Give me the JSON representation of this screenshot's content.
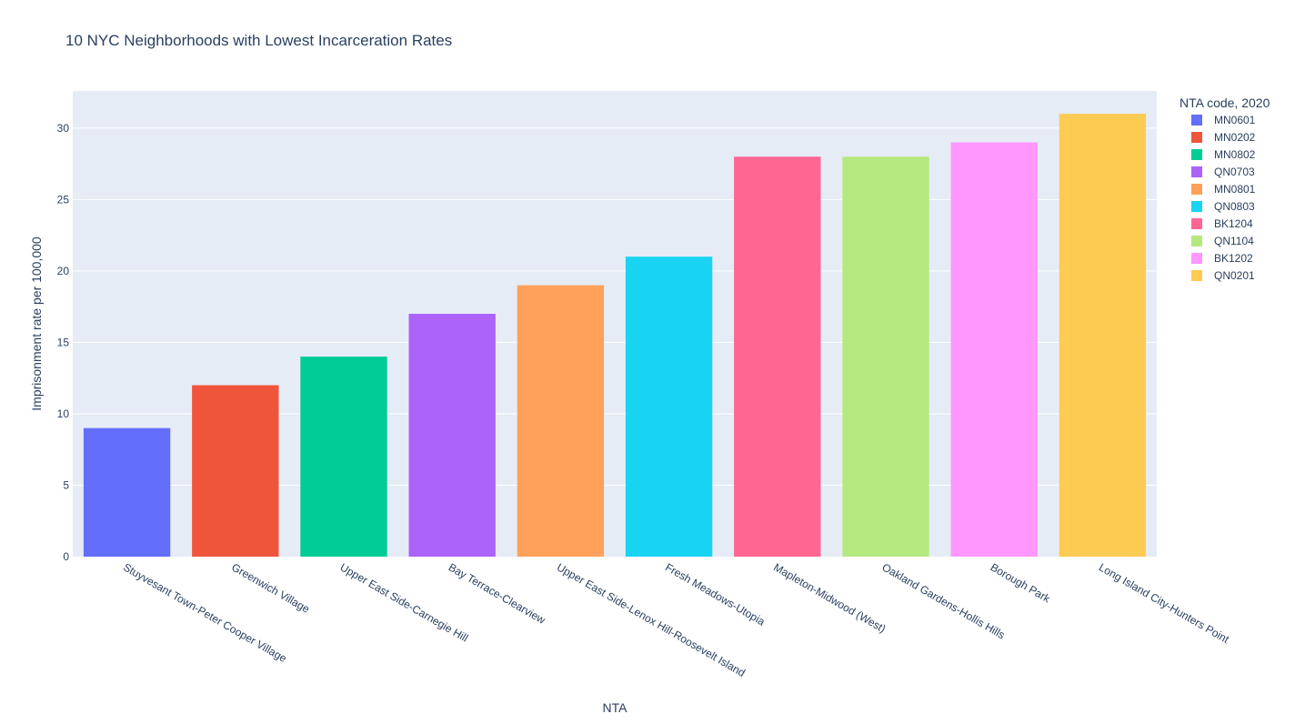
{
  "chart_data": {
    "type": "bar",
    "title": "10 NYC Neighborhoods with Lowest Incarceration Rates",
    "xlabel": "NTA",
    "ylabel": "Imprisonment rate per 100,000",
    "ylim": [
      0,
      32.6
    ],
    "yticks": [
      0,
      5,
      10,
      15,
      20,
      25,
      30
    ],
    "grid": true,
    "legend": {
      "title": "NTA code, 2020",
      "position": "right"
    },
    "categories": [
      "Stuyvesant Town-Peter Cooper Village",
      "Greenwich Village",
      "Upper East Side-Carnegie Hill",
      "Bay Terrace-Clearview",
      "Upper East Side-Lenox Hill-Roosevelt Island",
      "Fresh Meadows-Utopia",
      "Mapleton-Midwood (West)",
      "Oakland Gardens-Hollis Hills",
      "Borough Park",
      "Long Island City-Hunters Point"
    ],
    "series": [
      {
        "name": "MN0601",
        "category": "Stuyvesant Town-Peter Cooper Village",
        "value": 9,
        "color": "#636efa"
      },
      {
        "name": "MN0202",
        "category": "Greenwich Village",
        "value": 12,
        "color": "#ef553b"
      },
      {
        "name": "MN0802",
        "category": "Upper East Side-Carnegie Hill",
        "value": 14,
        "color": "#00cc96"
      },
      {
        "name": "QN0703",
        "category": "Bay Terrace-Clearview",
        "value": 17,
        "color": "#ab63fa"
      },
      {
        "name": "MN0801",
        "category": "Upper East Side-Lenox Hill-Roosevelt Island",
        "value": 19,
        "color": "#ffa15a"
      },
      {
        "name": "QN0803",
        "category": "Fresh Meadows-Utopia",
        "value": 21,
        "color": "#19d3f3"
      },
      {
        "name": "BK1204",
        "category": "Mapleton-Midwood (West)",
        "value": 28,
        "color": "#ff6692"
      },
      {
        "name": "QN1104",
        "category": "Oakland Gardens-Hollis Hills",
        "value": 28,
        "color": "#b6e880"
      },
      {
        "name": "BK1202",
        "category": "Borough Park",
        "value": 29,
        "color": "#ff97ff"
      },
      {
        "name": "QN0201",
        "category": "Long Island City-Hunters Point",
        "value": 31,
        "color": "#fecb52"
      }
    ]
  }
}
